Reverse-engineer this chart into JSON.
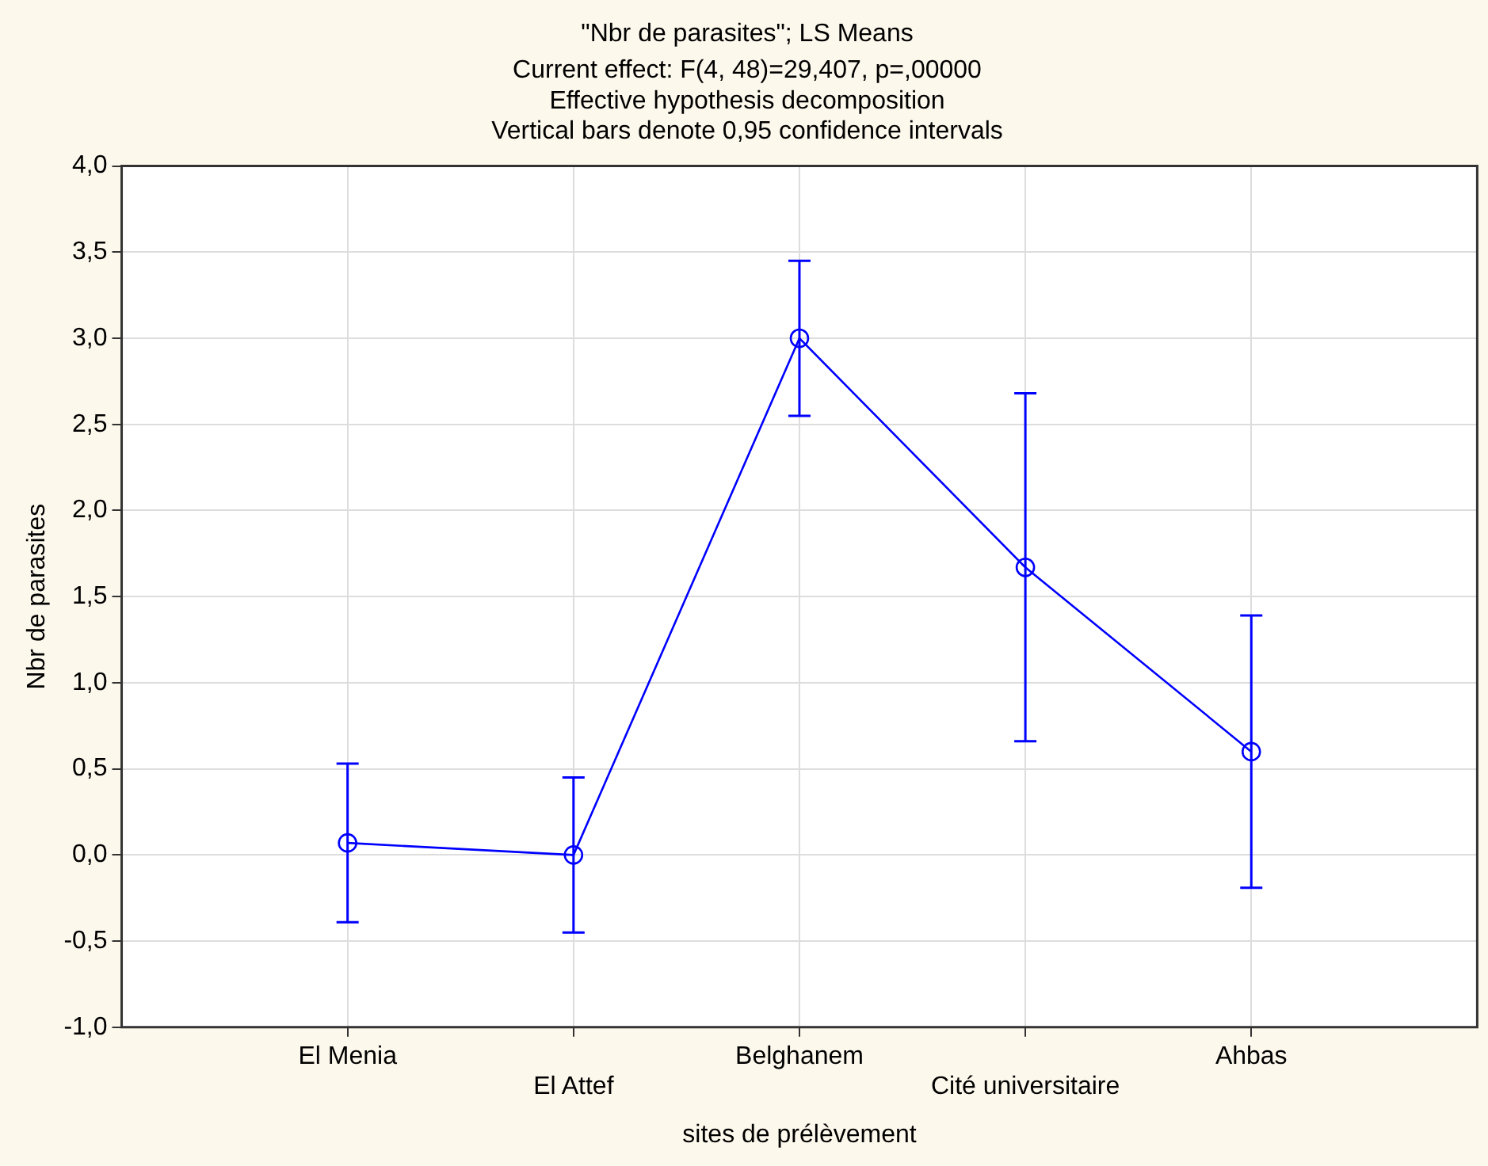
{
  "chart_data": {
    "type": "line",
    "title": "\"Nbr de parasites\"; LS Means",
    "subtitle": "Current effect: F(4, 48)=29,407, p=,00000\nEffective hypothesis decomposition\nVertical bars denote 0,95 confidence intervals",
    "xlabel": "sites de prélèvement",
    "ylabel": "Nbr de parasites",
    "categories": [
      "El Menia",
      "El Attef",
      "Belghanem",
      "Cité universitaire",
      "Ahbas"
    ],
    "series": [
      {
        "color": "#0000ff",
        "values": [
          0.07,
          0,
          3.0,
          1.67,
          0.6
        ],
        "errors": [
          0.46,
          0.45,
          0.45,
          1.01,
          0.79
        ]
      }
    ],
    "ylim": [
      -1,
      4
    ],
    "yticks": [
      {
        "value": -1,
        "label": "-1,0"
      },
      {
        "value": -0.5,
        "label": "-0,5"
      },
      {
        "value": 0,
        "label": "0,0"
      },
      {
        "value": 0.5,
        "label": "0,5"
      },
      {
        "value": 1,
        "label": "1,0"
      },
      {
        "value": 1.5,
        "label": "1,5"
      },
      {
        "value": 2,
        "label": "2,0"
      },
      {
        "value": 2.5,
        "label": "2,5"
      },
      {
        "value": 3,
        "label": "3,0"
      },
      {
        "value": 3.5,
        "label": "3,5"
      },
      {
        "value": 4,
        "label": "4,0"
      }
    ],
    "grid": true,
    "legend": false,
    "marker": "circle",
    "line_style": "solid"
  }
}
